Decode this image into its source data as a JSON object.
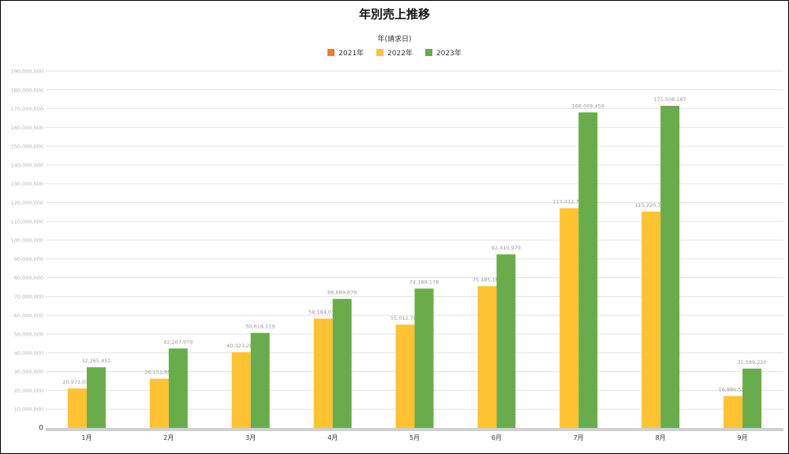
{
  "chart_data": {
    "type": "bar",
    "title": "年別売上推移",
    "legend_title": "年(請求日)",
    "legend_position": "top",
    "grid": true,
    "categories": [
      "1月",
      "2月",
      "3月",
      "4月",
      "5月",
      "6月",
      "7月",
      "8月",
      "9月"
    ],
    "ylim": [
      0,
      190000000
    ],
    "y_ticks": [
      0,
      10000000,
      20000000,
      30000000,
      40000000,
      50000000,
      60000000,
      70000000,
      80000000,
      90000000,
      100000000,
      110000000,
      120000000,
      130000000,
      140000000,
      150000000,
      160000000,
      170000000,
      180000000,
      190000000
    ],
    "y_tick_labels": [
      "0",
      "10,000,000",
      "20,000,000",
      "30,000,000",
      "40,000,000",
      "50,000,000",
      "60,000,000",
      "70,000,000",
      "80,000,000",
      "90,000,000",
      "100,000,000",
      "110,000,000",
      "120,000,000",
      "130,000,000",
      "140,000,000",
      "150,000,000",
      "160,000,000",
      "170,000,000",
      "180,000,000",
      "190,000,000"
    ],
    "series": [
      {
        "name": "2021年",
        "color": "#ed7d31",
        "values": [
          null,
          null,
          null,
          null,
          null,
          null,
          null,
          null,
          null
        ]
      },
      {
        "name": "2022年",
        "color": "#ffc232",
        "values": [
          21000000,
          26200000,
          40300000,
          58200000,
          55000000,
          75500000,
          117000000,
          115200000,
          17000000
        ]
      },
      {
        "name": "2023年",
        "color": "#6aac4b",
        "values": [
          32300000,
          42300000,
          50600000,
          68700000,
          74200000,
          92400000,
          168000000,
          171500000,
          31600000
        ]
      }
    ],
    "data_labels": {
      "2022年": [
        "20,973,036",
        "26,151,892",
        "40,323,281",
        "58,184,039",
        "55,012,788",
        "75,485,182",
        "117,012,728",
        "115,220,751",
        "16,986,537"
      ],
      "2023年": [
        "32,265,452",
        "42,267,979",
        "50,618,119",
        "68,689,679",
        "74,189,178",
        "92,410,979",
        "168,009,459",
        "171,508,187",
        "31,589,220"
      ]
    }
  }
}
